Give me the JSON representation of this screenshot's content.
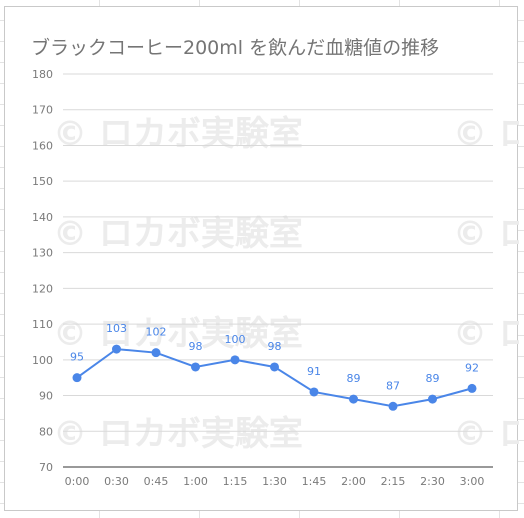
{
  "chart_data": {
    "type": "line",
    "title": "ブラックコーヒー200ml を飲んだ血糖値の推移",
    "categories": [
      "0:00",
      "0:30",
      "0:45",
      "1:00",
      "1:15",
      "1:30",
      "1:45",
      "2:00",
      "2:15",
      "2:30",
      "3:00"
    ],
    "series": [
      {
        "values": [
          95,
          103,
          102,
          98,
          100,
          98,
          91,
          89,
          87,
          89,
          92
        ]
      }
    ],
    "data_labels": true,
    "ylim": [
      70,
      180
    ],
    "yticks": [
      70,
      80,
      90,
      100,
      110,
      120,
      130,
      140,
      150,
      160,
      170,
      180
    ],
    "xlabel": "",
    "ylabel": "",
    "grid": true,
    "legend": "none",
    "colors": {
      "line": "#4a86e8",
      "grid": "#d9d9d9",
      "tick_text": "#7a7a7a",
      "label_text": "#4a86e8"
    }
  },
  "watermark": {
    "text": "© ロカボ実験室",
    "color": "#ececec"
  }
}
